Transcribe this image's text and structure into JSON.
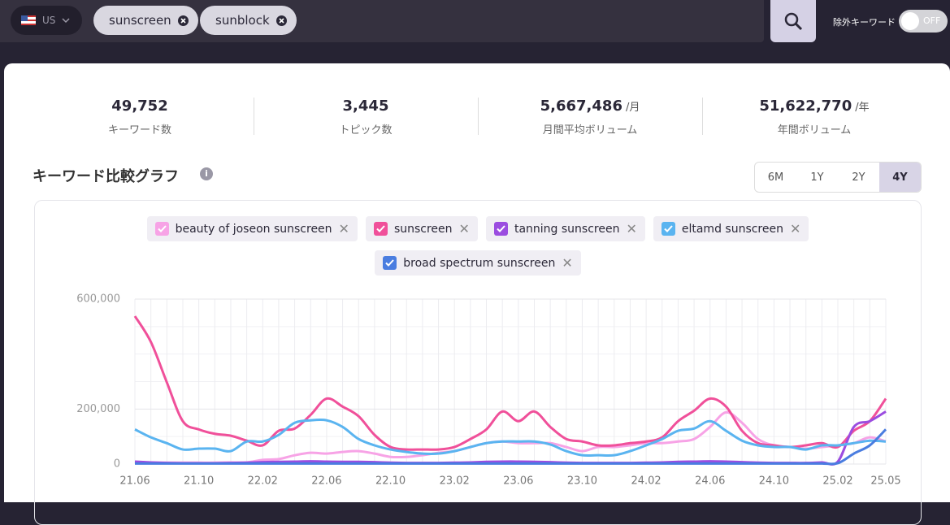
{
  "header": {
    "country": "US",
    "keywords": [
      "sunscreen",
      "sunblock"
    ],
    "exclude_label": "除外キーワード",
    "toggle": "OFF"
  },
  "stats": [
    {
      "value": "49,752",
      "label": "キーワード数"
    },
    {
      "value": "3,445",
      "label": "トピック数"
    },
    {
      "value": "5,667,486",
      "unit": "/月",
      "label": "月間平均ボリューム"
    },
    {
      "value": "51,622,770",
      "unit": "/年",
      "label": "年間ボリューム"
    }
  ],
  "section_title": "キーワード比較グラフ",
  "periods": [
    "6M",
    "1Y",
    "2Y",
    "4Y"
  ],
  "active_period": 3,
  "chart_data": {
    "type": "line",
    "x": [
      "21.06",
      null,
      null,
      null,
      "21.10",
      null,
      null,
      null,
      "22.02",
      null,
      null,
      null,
      "22.06",
      null,
      null,
      null,
      "22.10",
      null,
      null,
      null,
      "23.02",
      null,
      null,
      null,
      "23.06",
      null,
      null,
      null,
      "23.10",
      null,
      null,
      null,
      "24.02",
      null,
      null,
      null,
      "24.06",
      null,
      null,
      null,
      "24.10",
      null,
      null,
      null,
      "25.02",
      null,
      null,
      "25.05"
    ],
    "series": [
      {
        "name": "beauty of joseon sunscreen",
        "color": "#f7a3e6",
        "values": [
          5000,
          5000,
          5000,
          5000,
          5000,
          5000,
          6000,
          6000,
          15000,
          18000,
          32000,
          41000,
          38000,
          44000,
          47000,
          38000,
          26000,
          26000,
          32000,
          41000,
          47000,
          62000,
          76000,
          82000,
          76000,
          76000,
          76000,
          62000,
          47000,
          62000,
          62000,
          68000,
          76000,
          76000,
          82000,
          91000,
          135000,
          188000,
          150000,
          91000,
          68000,
          62000,
          56000,
          62000,
          68000,
          76000,
          97000,
          82000
        ]
      },
      {
        "name": "sunscreen",
        "color": "#f0509a",
        "values": [
          538000,
          444000,
          297000,
          156000,
          126000,
          110000,
          103000,
          85000,
          68000,
          121000,
          129000,
          179000,
          238000,
          209000,
          174000,
          106000,
          62000,
          53000,
          53000,
          53000,
          62000,
          91000,
          126000,
          191000,
          156000,
          191000,
          135000,
          91000,
          82000,
          68000,
          68000,
          76000,
          82000,
          97000,
          156000,
          194000,
          238000,
          209000,
          121000,
          76000,
          68000,
          62000,
          68000,
          76000,
          62000,
          121000,
          156000,
          238000
        ]
      },
      {
        "name": "tanning sunscreen",
        "color": "#9b4de0",
        "values": [
          9000,
          6000,
          4000,
          3000,
          3000,
          3000,
          4000,
          5000,
          7000,
          8000,
          9000,
          10000,
          9000,
          8000,
          8000,
          7000,
          5000,
          4000,
          4000,
          4000,
          5000,
          6000,
          8000,
          9000,
          9000,
          8000,
          7000,
          5000,
          4000,
          4000,
          4000,
          4000,
          5000,
          6000,
          8000,
          9000,
          10000,
          9000,
          7000,
          5000,
          4000,
          4000,
          4000,
          6000,
          9000,
          135000,
          156000,
          191000
        ]
      },
      {
        "name": "eltamd sunscreen",
        "color": "#5ab4f0",
        "values": [
          126000,
          97000,
          76000,
          53000,
          56000,
          56000,
          47000,
          82000,
          82000,
          106000,
          150000,
          159000,
          159000,
          135000,
          91000,
          68000,
          53000,
          44000,
          38000,
          38000,
          47000,
          62000,
          76000,
          82000,
          82000,
          82000,
          71000,
          47000,
          32000,
          32000,
          32000,
          47000,
          68000,
          91000,
          121000,
          129000,
          156000,
          121000,
          85000,
          68000,
          62000,
          62000,
          53000,
          68000,
          68000,
          76000,
          85000,
          82000
        ]
      },
      {
        "name": "broad spectrum sunscreen",
        "color": "#4a7de0",
        "values": [
          2000,
          2000,
          2000,
          2000,
          2000,
          2000,
          2000,
          2000,
          2000,
          2000,
          2000,
          2000,
          2000,
          2000,
          2000,
          2000,
          2000,
          2000,
          2000,
          2000,
          2000,
          2000,
          2000,
          2000,
          2000,
          2000,
          2000,
          2000,
          2000,
          2000,
          2000,
          2000,
          2000,
          2000,
          2000,
          2000,
          2000,
          2000,
          2000,
          2000,
          2000,
          2000,
          2000,
          2000,
          3000,
          38000,
          68000,
          126000
        ]
      }
    ],
    "ylim": [
      0,
      600000
    ],
    "yticks": [
      0,
      {
        "value": 200000,
        "label": "200,000"
      },
      {
        "value": 600000,
        "label": "600,000"
      }
    ],
    "grid": true
  }
}
